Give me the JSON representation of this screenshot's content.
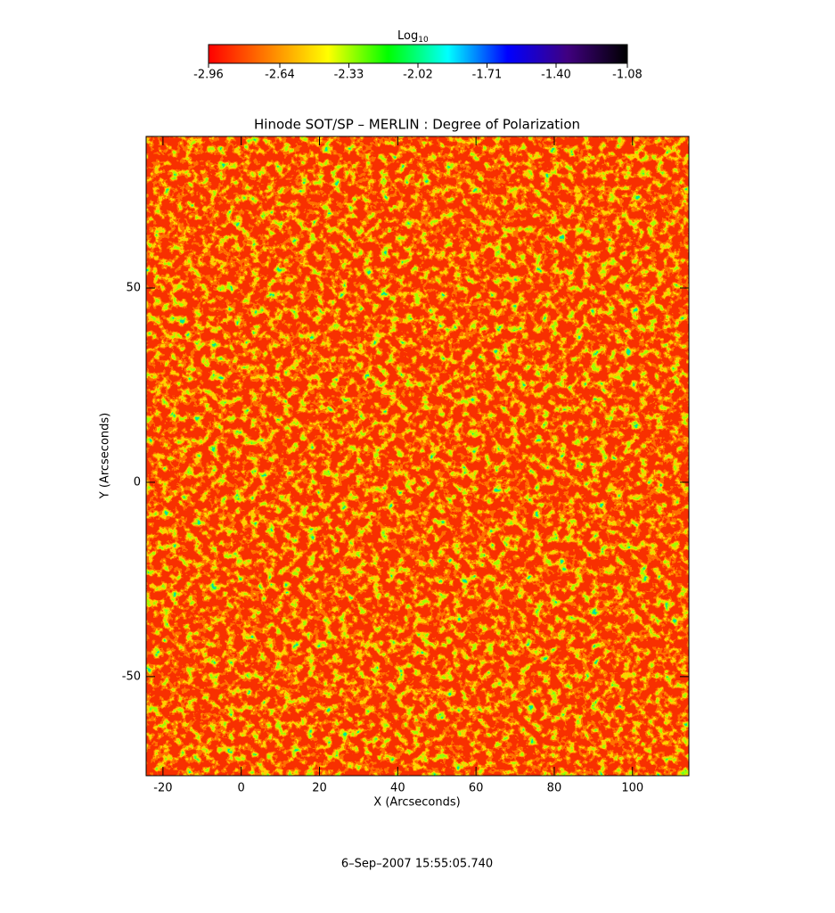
{
  "chart_data": {
    "type": "heatmap",
    "title": "Hinode SOT/SP – MERLIN : Degree of Polarization",
    "x_label": "X (Arcseconds)",
    "y_label": "Y (Arcseconds)",
    "footer": "6–Sep–2007 15:55:05.740",
    "xlim": [
      -24.3,
      114.4
    ],
    "ylim": [
      -75.5,
      89
    ],
    "xticks": [
      -20,
      0,
      20,
      40,
      60,
      80,
      100
    ],
    "yticks": [
      -50,
      0,
      50
    ],
    "colorbar": {
      "label": "Log",
      "label_sub": "10",
      "lim": [
        -2.96,
        -1.08
      ],
      "ticks": [
        -2.96,
        -2.64,
        -2.33,
        -2.02,
        -1.71,
        {
          "value": -1.4,
          "label": "-1.40"
        },
        -1.08
      ],
      "colors": [
        "#ff0000",
        "#ff8000",
        "#ffff00",
        "#00ff00",
        "#00ffff",
        "#0000ff",
        "#400080",
        "#000000"
      ]
    }
  }
}
